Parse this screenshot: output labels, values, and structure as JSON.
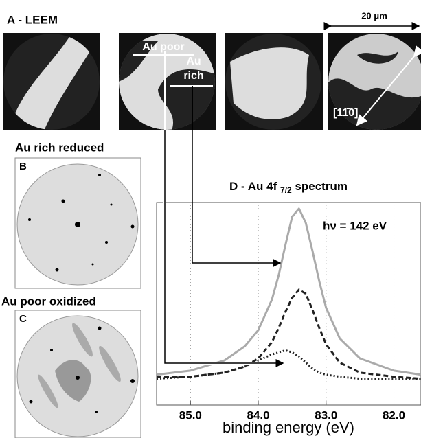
{
  "figure": {
    "panel_a": "A - LEEM",
    "scale_bar": "20 μm",
    "au_poor": "Au poor",
    "au_rich_1": "Au",
    "au_rich_2": "rich",
    "direction": "[11̄0]",
    "panel_b_title": "Au rich reduced",
    "panel_b": "B",
    "panel_c_title": "Au poor oxidized",
    "panel_c": "C"
  },
  "chart_data": {
    "type": "line",
    "title": {
      "main": "D - Au 4f",
      "subscript": "7/2",
      "rest": "spectrum"
    },
    "annotation": "hν = 142 eV",
    "xlabel": "binding energy (eV)",
    "x": [
      85.5,
      85.0,
      84.5,
      84.2,
      84.0,
      83.8,
      83.7,
      83.6,
      83.5,
      83.4,
      83.3,
      83.2,
      83.1,
      83.0,
      82.8,
      82.5,
      82.0,
      81.6
    ],
    "xlim": [
      85.5,
      81.6
    ],
    "xticks": [
      {
        "value": 85,
        "label": "85.0"
      },
      {
        "value": 84,
        "label": "84.0"
      },
      {
        "value": 83,
        "label": "83.0"
      },
      {
        "value": 82,
        "label": "82.0"
      }
    ],
    "ylim": [
      0,
      100
    ],
    "grid": true,
    "series": [
      {
        "color": "#aaaaaa",
        "dash": "solid",
        "values": [
          15,
          17,
          22,
          29,
          37,
          52,
          64,
          79,
          93,
          97,
          90,
          76,
          61,
          48,
          33,
          23,
          17,
          15
        ]
      },
      {
        "color": "#222222",
        "dash": "dashed",
        "values": [
          14,
          14,
          16,
          19,
          23,
          31,
          38,
          46,
          53,
          57,
          55,
          47,
          38,
          30,
          21,
          16,
          14,
          13
        ]
      },
      {
        "color": "#222222",
        "dash": "dotted",
        "values": [
          13,
          14,
          16,
          19,
          22,
          25,
          26,
          27,
          26,
          24,
          21,
          18,
          16,
          15,
          14,
          13,
          13,
          13
        ]
      }
    ]
  }
}
